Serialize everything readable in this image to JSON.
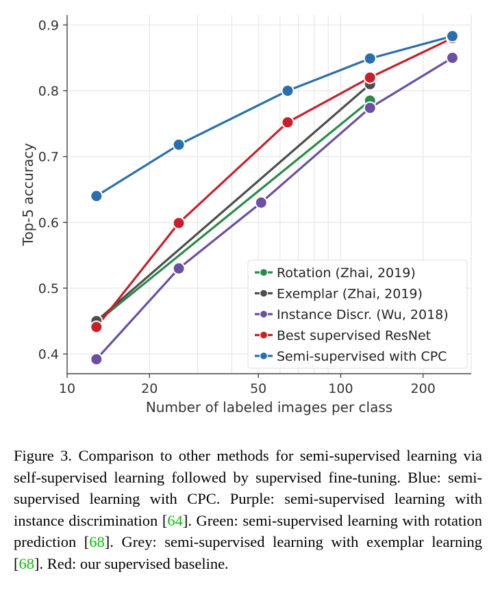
{
  "chart_data": {
    "type": "line",
    "xscale": "log",
    "xlabel": "Number of labeled images per class",
    "ylabel": "Top-5 accuracy",
    "xlim": [
      10,
      300
    ],
    "ylim": [
      0.37,
      0.915
    ],
    "xticks": [
      10,
      20,
      50,
      100,
      200
    ],
    "xtick_labels": [
      "10",
      "20",
      "50",
      "100",
      "200"
    ],
    "yticks": [
      0.4,
      0.5,
      0.6,
      0.7,
      0.8,
      0.9
    ],
    "ytick_labels": [
      "0.4",
      "0.5",
      "0.6",
      "0.7",
      "0.8",
      "0.9"
    ],
    "grid": true,
    "legend_position": "bottom-right",
    "series": [
      {
        "name": "Rotation (Zhai, 2019)",
        "color": "#2a8a4a",
        "x": [
          12.8,
          128
        ],
        "y": [
          0.448,
          0.785
        ]
      },
      {
        "name": "Exemplar (Zhai, 2019)",
        "color": "#4d4d4d",
        "x": [
          12.8,
          128
        ],
        "y": [
          0.45,
          0.81
        ]
      },
      {
        "name": "Instance Discr. (Wu, 2018)",
        "color": "#6a4fa3",
        "x": [
          12.8,
          25.6,
          51.2,
          128,
          256
        ],
        "y": [
          0.392,
          0.53,
          0.63,
          0.774,
          0.85
        ]
      },
      {
        "name": "Best supervised ResNet",
        "color": "#c8202a",
        "x": [
          12.8,
          25.6,
          64,
          128,
          256
        ],
        "y": [
          0.441,
          0.599,
          0.752,
          0.82,
          0.88
        ]
      },
      {
        "name": "Semi-supervised with CPC",
        "color": "#2a6fad",
        "x": [
          12.8,
          25.6,
          64,
          128,
          256
        ],
        "y": [
          0.64,
          0.718,
          0.8,
          0.849,
          0.883
        ]
      }
    ]
  },
  "caption": {
    "prefix": "Figure 3. Comparison to other methods for semi-supervised learning via self-supervised learning followed by supervised fine-tuning. Blue: semi-supervised learning with CPC. Purple: semi-supervised learning with instance discrimination [",
    "cite1": "64",
    "mid1": "]. Green: semi-supervised learning with rotation prediction [",
    "cite2": "68",
    "mid2": "]. Grey: semi-supervised learning with exemplar learning [",
    "cite3": "68",
    "suffix": "]. Red: our supervised baseline."
  }
}
